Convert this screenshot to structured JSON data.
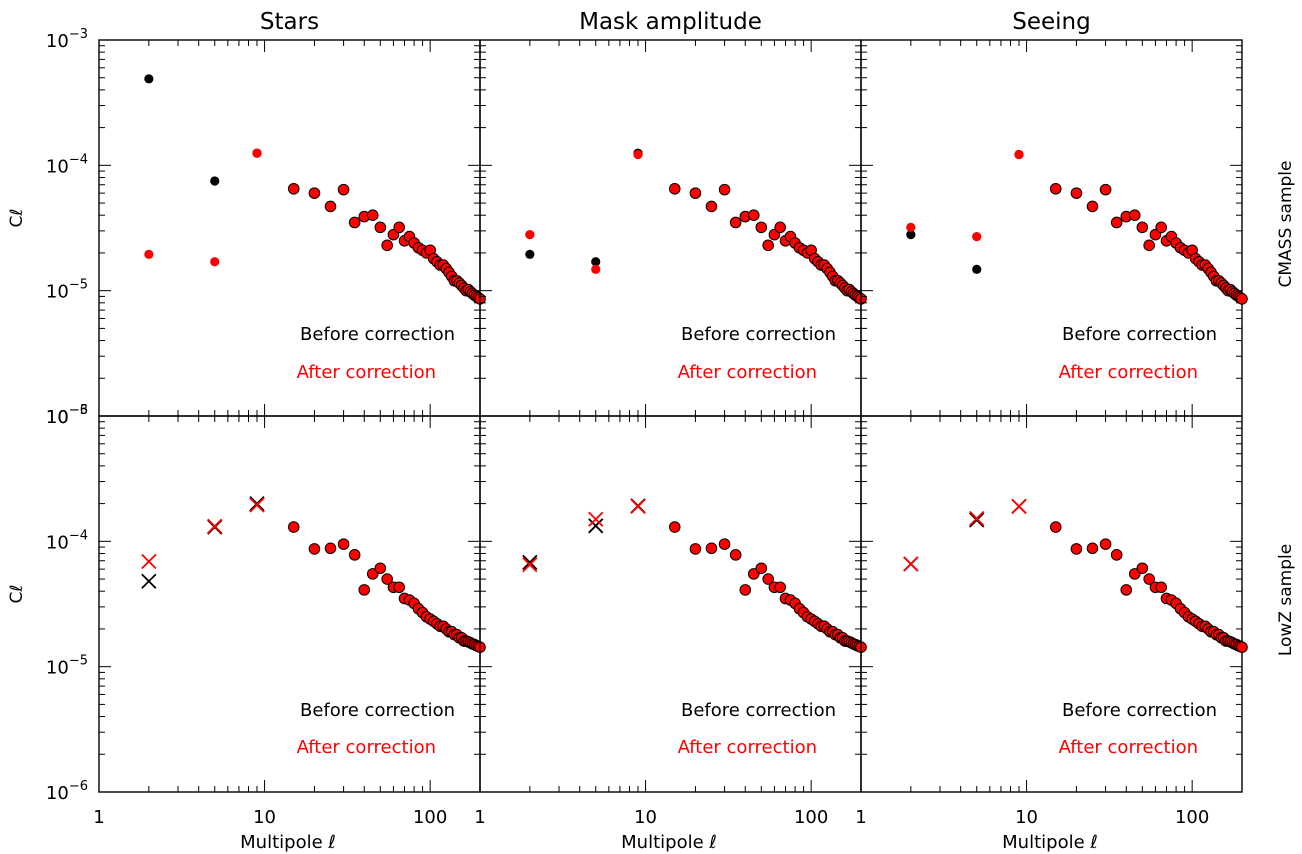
{
  "chart_data": {
    "type": "scatter",
    "xscale": "log",
    "yscale": "log",
    "xlim": [
      1,
      200
    ],
    "ylim": [
      1e-06,
      0.001
    ],
    "xlabel": "Multipole ℓ",
    "ylabel": "Cℓ",
    "xticks": [
      {
        "v": 1,
        "label": "1"
      },
      {
        "v": 10,
        "label": "10"
      },
      {
        "v": 100,
        "label": "100"
      }
    ],
    "yticks": [
      {
        "v": 0.001,
        "mant": "10",
        "exp": "−3"
      },
      {
        "v": 0.0001,
        "mant": "10",
        "exp": "−4"
      },
      {
        "v": 1e-05,
        "mant": "10",
        "exp": "−5"
      },
      {
        "v": 1e-06,
        "mant": "10",
        "exp": "−6"
      }
    ],
    "columns": [
      "Stars",
      "Mask amplitude",
      "Seeing"
    ],
    "rows": [
      "CMASS sample",
      "LowZ sample"
    ],
    "legend": [
      {
        "label": "Before correction",
        "color": "#000000"
      },
      {
        "label": "After correction",
        "color": "#ff0000"
      }
    ],
    "colors": {
      "before": "#000000",
      "after": "#ff0000"
    },
    "shared_ell": [
      15,
      20,
      25,
      30,
      35,
      40,
      45,
      50,
      55,
      60,
      65,
      70,
      75,
      80,
      85,
      90,
      95,
      100,
      105,
      110,
      115,
      120,
      125,
      130,
      135,
      140,
      145,
      150,
      155,
      160,
      165,
      170,
      175,
      180,
      185,
      190,
      195,
      200
    ],
    "cmass_tail": [
      6.5e-05,
      6e-05,
      4.7e-05,
      6.4e-05,
      3.5e-05,
      3.9e-05,
      4e-05,
      3.2e-05,
      2.3e-05,
      2.8e-05,
      3.2e-05,
      2.5e-05,
      2.7e-05,
      2.4e-05,
      2.2e-05,
      2.1e-05,
      2e-05,
      2.1e-05,
      1.8e-05,
      1.7e-05,
      1.6e-05,
      1.6e-05,
      1.5e-05,
      1.4e-05,
      1.3e-05,
      1.2e-05,
      1.2e-05,
      1.15e-05,
      1.1e-05,
      1.05e-05,
      1e-05,
      1.02e-05,
      9.8e-06,
      9.5e-06,
      9.2e-06,
      9e-06,
      8.8e-06,
      8.6e-06
    ],
    "lowz_tail": [
      0.00013,
      8.7e-05,
      8.8e-05,
      9.5e-05,
      7.8e-05,
      4.1e-05,
      5.5e-05,
      6.1e-05,
      5e-05,
      4.3e-05,
      4.3e-05,
      3.5e-05,
      3.4e-05,
      3.2e-05,
      2.9e-05,
      2.7e-05,
      2.5e-05,
      2.4e-05,
      2.3e-05,
      2.2e-05,
      2.1e-05,
      2.1e-05,
      2e-05,
      1.9e-05,
      1.9e-05,
      1.8e-05,
      1.8e-05,
      1.7e-05,
      1.7e-05,
      1.6e-05,
      1.6e-05,
      1.58e-05,
      1.55e-05,
      1.52e-05,
      1.5e-05,
      1.47e-05,
      1.45e-05,
      1.43e-05
    ],
    "panels": [
      {
        "row": 0,
        "col": 0,
        "before": [
          {
            "x": 2,
            "y": 0.00049
          },
          {
            "x": 5,
            "y": 7.5e-05
          },
          {
            "x": 9,
            "y": 0.000125
          }
        ],
        "after": [
          {
            "x": 2,
            "y": 1.95e-05
          },
          {
            "x": 5,
            "y": 1.7e-05
          },
          {
            "x": 9,
            "y": 0.000125
          }
        ],
        "before_marker": "dot",
        "after_marker": "dot"
      },
      {
        "row": 0,
        "col": 1,
        "before": [
          {
            "x": 2,
            "y": 1.95e-05
          },
          {
            "x": 5,
            "y": 1.7e-05
          },
          {
            "x": 9,
            "y": 0.000125
          }
        ],
        "after": [
          {
            "x": 2,
            "y": 2.8e-05
          },
          {
            "x": 5,
            "y": 1.48e-05
          },
          {
            "x": 9,
            "y": 0.000122
          }
        ],
        "before_marker": "dot",
        "after_marker": "dot"
      },
      {
        "row": 0,
        "col": 2,
        "before": [
          {
            "x": 2,
            "y": 2.8e-05
          },
          {
            "x": 5,
            "y": 1.48e-05
          },
          {
            "x": 9,
            "y": 0.000122
          }
        ],
        "after": [
          {
            "x": 2,
            "y": 3.2e-05
          },
          {
            "x": 5,
            "y": 2.7e-05
          },
          {
            "x": 9,
            "y": 0.000122
          }
        ],
        "before_marker": "dot",
        "after_marker": "dot"
      },
      {
        "row": 1,
        "col": 0,
        "before": [
          {
            "x": 2,
            "y": 4.8e-05
          },
          {
            "x": 5,
            "y": 0.00013
          },
          {
            "x": 9,
            "y": 0.0002
          }
        ],
        "after": [
          {
            "x": 2,
            "y": 6.9e-05
          },
          {
            "x": 5,
            "y": 0.000132
          },
          {
            "x": 9,
            "y": 0.000195
          }
        ],
        "before_marker": "cross",
        "after_marker": "cross"
      },
      {
        "row": 1,
        "col": 1,
        "before": [
          {
            "x": 2,
            "y": 6.8e-05
          },
          {
            "x": 5,
            "y": 0.000133
          },
          {
            "x": 9,
            "y": 0.000192
          }
        ],
        "after": [
          {
            "x": 2,
            "y": 6.5e-05
          },
          {
            "x": 5,
            "y": 0.00015
          },
          {
            "x": 9,
            "y": 0.00019
          }
        ],
        "before_marker": "cross",
        "after_marker": "cross"
      },
      {
        "row": 1,
        "col": 2,
        "before": [
          {
            "x": 2,
            "y": 6.6e-05
          },
          {
            "x": 5,
            "y": 0.000148
          },
          {
            "x": 9,
            "y": 0.00019
          }
        ],
        "after": [
          {
            "x": 2,
            "y": 6.6e-05
          },
          {
            "x": 5,
            "y": 0.000152
          },
          {
            "x": 9,
            "y": 0.00019
          }
        ],
        "before_marker": "cross",
        "after_marker": "cross"
      }
    ]
  }
}
